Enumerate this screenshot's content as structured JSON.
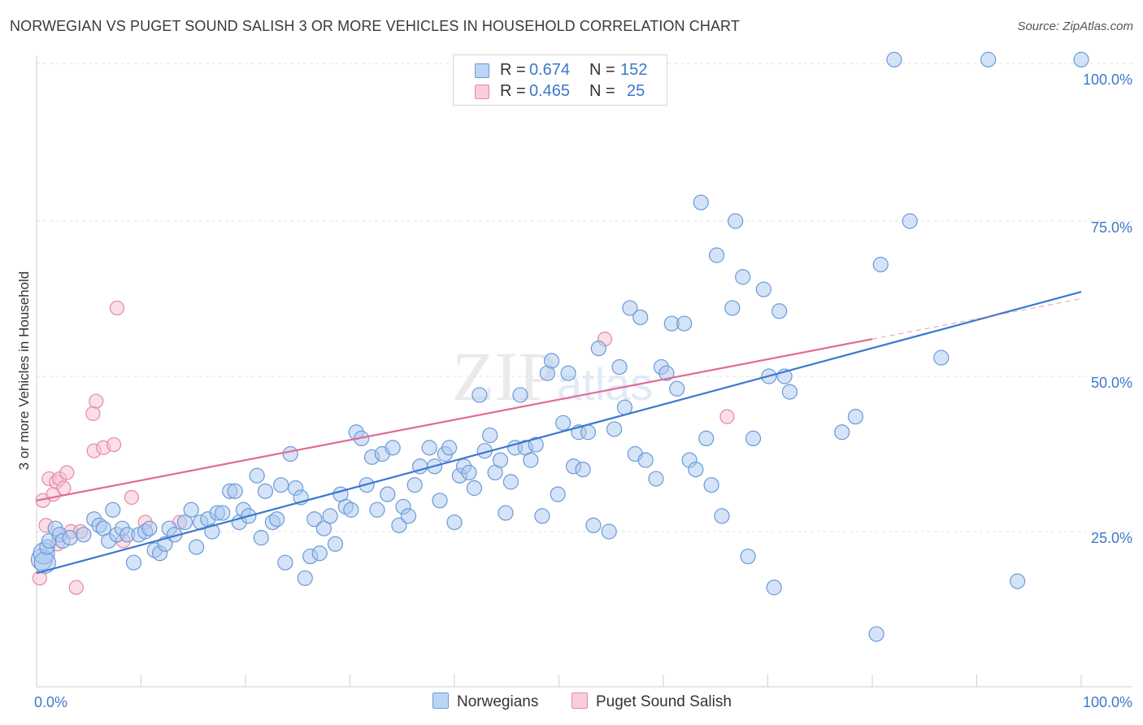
{
  "title": "NORWEGIAN VS PUGET SOUND SALISH 3 OR MORE VEHICLES IN HOUSEHOLD CORRELATION CHART",
  "source": "Source: ZipAtlas.com",
  "watermark": "ZIPatlas",
  "legend": {
    "rows": [
      {
        "r_label": "R =",
        "r_value": "0.674",
        "n_label": "N =",
        "n_value": "152"
      },
      {
        "r_label": "R =",
        "r_value": "0.465",
        "n_label": "N =",
        "n_value": "25"
      }
    ]
  },
  "bottom_legend": [
    "Norwegians",
    "Puget Sound Salish"
  ],
  "colors": {
    "norwegian_fill": "#a9c8f0",
    "norwegian_stroke": "#6a9ad8",
    "norwegian_line": "#3a78d0",
    "salish_fill": "#f8c2d2",
    "salish_stroke": "#e38aa6",
    "salish_line": "#e06b96",
    "tick_text": "#3d78c9",
    "grid": "#e2e2e2"
  },
  "chart_data": {
    "type": "scatter",
    "title": "NORWEGIAN VS PUGET SOUND SALISH 3 OR MORE VEHICLES IN HOUSEHOLD CORRELATION CHART",
    "xlabel": "",
    "ylabel": "3 or more Vehicles in Household",
    "xlim": [
      0,
      100
    ],
    "ylim": [
      0,
      102
    ],
    "x_tick_labels": [
      "0.0%",
      "100.0%"
    ],
    "y_ticks": [
      25,
      50,
      75,
      100
    ],
    "y_tick_labels": [
      "25.0%",
      "50.0%",
      "75.0%",
      "100.0%"
    ],
    "grid": true,
    "legend_position": "top-center",
    "series": [
      {
        "name": "Norwegians",
        "R": 0.674,
        "N": 152,
        "trend": {
          "x0": 0,
          "y0": 18.3,
          "x1": 100,
          "y1": 63.6
        },
        "points": [
          [
            0.5,
            20.5
          ],
          [
            0.7,
            21.5
          ],
          [
            0.8,
            20.0
          ],
          [
            1.0,
            22.5
          ],
          [
            1.2,
            23.5
          ],
          [
            1.8,
            25.5
          ],
          [
            2.2,
            24.5
          ],
          [
            2.5,
            23.5
          ],
          [
            3.2,
            24.0
          ],
          [
            4.5,
            24.5
          ],
          [
            5.5,
            27.0
          ],
          [
            6.0,
            26.0
          ],
          [
            6.4,
            25.5
          ],
          [
            6.9,
            23.5
          ],
          [
            7.3,
            28.5
          ],
          [
            7.7,
            24.5
          ],
          [
            8.2,
            25.5
          ],
          [
            8.7,
            24.5
          ],
          [
            9.3,
            20.0
          ],
          [
            9.8,
            24.5
          ],
          [
            10.4,
            25.0
          ],
          [
            10.8,
            25.5
          ],
          [
            11.3,
            22.0
          ],
          [
            11.8,
            21.5
          ],
          [
            12.3,
            23.0
          ],
          [
            12.7,
            25.5
          ],
          [
            13.2,
            24.5
          ],
          [
            14.2,
            26.5
          ],
          [
            14.8,
            28.5
          ],
          [
            15.3,
            22.5
          ],
          [
            15.7,
            26.5
          ],
          [
            16.4,
            27.0
          ],
          [
            16.8,
            25.0
          ],
          [
            17.3,
            28.0
          ],
          [
            17.8,
            28.0
          ],
          [
            18.5,
            31.5
          ],
          [
            19.0,
            31.5
          ],
          [
            19.4,
            26.5
          ],
          [
            19.8,
            28.5
          ],
          [
            20.3,
            27.5
          ],
          [
            21.1,
            34.0
          ],
          [
            21.5,
            24.0
          ],
          [
            21.9,
            31.5
          ],
          [
            22.6,
            26.5
          ],
          [
            23.0,
            27.0
          ],
          [
            23.4,
            32.5
          ],
          [
            23.8,
            20.0
          ],
          [
            24.3,
            37.5
          ],
          [
            24.8,
            32.0
          ],
          [
            25.3,
            30.5
          ],
          [
            25.7,
            17.5
          ],
          [
            26.2,
            21.0
          ],
          [
            26.6,
            27.0
          ],
          [
            27.1,
            21.5
          ],
          [
            27.5,
            25.5
          ],
          [
            28.1,
            27.5
          ],
          [
            28.6,
            23.0
          ],
          [
            29.1,
            31.0
          ],
          [
            29.6,
            29.0
          ],
          [
            30.1,
            28.5
          ],
          [
            30.6,
            41.0
          ],
          [
            31.1,
            40.0
          ],
          [
            31.6,
            32.5
          ],
          [
            32.1,
            37.0
          ],
          [
            32.6,
            28.5
          ],
          [
            33.1,
            37.5
          ],
          [
            33.6,
            31.0
          ],
          [
            34.1,
            38.5
          ],
          [
            34.7,
            26.0
          ],
          [
            35.1,
            29.0
          ],
          [
            35.6,
            27.5
          ],
          [
            36.2,
            32.5
          ],
          [
            36.7,
            35.5
          ],
          [
            37.6,
            38.5
          ],
          [
            38.1,
            35.5
          ],
          [
            38.6,
            30.0
          ],
          [
            39.1,
            37.5
          ],
          [
            39.5,
            38.5
          ],
          [
            40.0,
            26.5
          ],
          [
            40.5,
            34.0
          ],
          [
            40.9,
            35.5
          ],
          [
            41.4,
            34.5
          ],
          [
            41.9,
            32.0
          ],
          [
            42.4,
            47.0
          ],
          [
            42.9,
            38.0
          ],
          [
            43.4,
            40.5
          ],
          [
            43.9,
            34.5
          ],
          [
            44.4,
            36.5
          ],
          [
            44.9,
            28.0
          ],
          [
            45.4,
            33.0
          ],
          [
            45.8,
            38.5
          ],
          [
            46.3,
            47.0
          ],
          [
            46.8,
            38.5
          ],
          [
            47.3,
            36.5
          ],
          [
            47.8,
            39.0
          ],
          [
            48.4,
            27.5
          ],
          [
            48.9,
            50.5
          ],
          [
            49.3,
            52.5
          ],
          [
            49.9,
            31.0
          ],
          [
            50.4,
            42.5
          ],
          [
            50.9,
            50.5
          ],
          [
            51.4,
            35.5
          ],
          [
            51.9,
            41.0
          ],
          [
            52.3,
            35.0
          ],
          [
            52.8,
            41.0
          ],
          [
            53.3,
            26.0
          ],
          [
            53.8,
            54.5
          ],
          [
            54.8,
            25.0
          ],
          [
            55.3,
            41.5
          ],
          [
            55.8,
            51.5
          ],
          [
            56.3,
            45.0
          ],
          [
            56.8,
            61.0
          ],
          [
            57.3,
            37.5
          ],
          [
            57.8,
            59.5
          ],
          [
            58.3,
            36.5
          ],
          [
            59.3,
            33.5
          ],
          [
            59.8,
            51.5
          ],
          [
            60.3,
            50.5
          ],
          [
            60.8,
            58.5
          ],
          [
            61.3,
            48.0
          ],
          [
            62.0,
            58.5
          ],
          [
            62.5,
            36.5
          ],
          [
            63.1,
            35.0
          ],
          [
            63.6,
            78.0
          ],
          [
            64.1,
            40.0
          ],
          [
            64.6,
            32.5
          ],
          [
            65.1,
            69.5
          ],
          [
            65.6,
            27.5
          ],
          [
            66.6,
            61.0
          ],
          [
            66.9,
            75.0
          ],
          [
            67.6,
            66.0
          ],
          [
            68.1,
            21.0
          ],
          [
            68.6,
            40.0
          ],
          [
            69.6,
            64.0
          ],
          [
            70.1,
            50.0
          ],
          [
            70.6,
            16.0
          ],
          [
            71.1,
            60.5
          ],
          [
            71.6,
            50.0
          ],
          [
            72.1,
            47.5
          ],
          [
            77.1,
            41.0
          ],
          [
            78.4,
            43.5
          ],
          [
            80.4,
            8.5
          ],
          [
            80.8,
            68.0
          ],
          [
            83.6,
            75.0
          ],
          [
            86.6,
            53.0
          ],
          [
            93.9,
            17.0
          ],
          [
            82.1,
            101.0
          ],
          [
            91.1,
            101.0
          ],
          [
            100,
            101.0
          ]
        ]
      },
      {
        "name": "Puget Sound Salish",
        "R": 0.465,
        "N": 25,
        "trend": {
          "x0": 0,
          "y0": 30.0,
          "x1": 80,
          "y1": 56.0
        },
        "points": [
          [
            0.3,
            17.5
          ],
          [
            0.6,
            30.0
          ],
          [
            0.9,
            26.0
          ],
          [
            1.2,
            33.5
          ],
          [
            1.6,
            31.0
          ],
          [
            1.9,
            33.0
          ],
          [
            2.2,
            33.5
          ],
          [
            2.6,
            32.0
          ],
          [
            2.9,
            34.5
          ],
          [
            3.3,
            25.0
          ],
          [
            3.8,
            16.0
          ],
          [
            4.2,
            25.0
          ],
          [
            5.4,
            44.0
          ],
          [
            5.7,
            46.0
          ],
          [
            5.5,
            38.0
          ],
          [
            6.4,
            38.5
          ],
          [
            7.4,
            39.0
          ],
          [
            7.7,
            61.0
          ],
          [
            8.3,
            23.5
          ],
          [
            9.1,
            30.5
          ],
          [
            10.4,
            26.5
          ],
          [
            13.7,
            26.5
          ],
          [
            54.4,
            56.0
          ],
          [
            66.1,
            43.5
          ],
          [
            2.0,
            23.0
          ]
        ]
      }
    ]
  }
}
